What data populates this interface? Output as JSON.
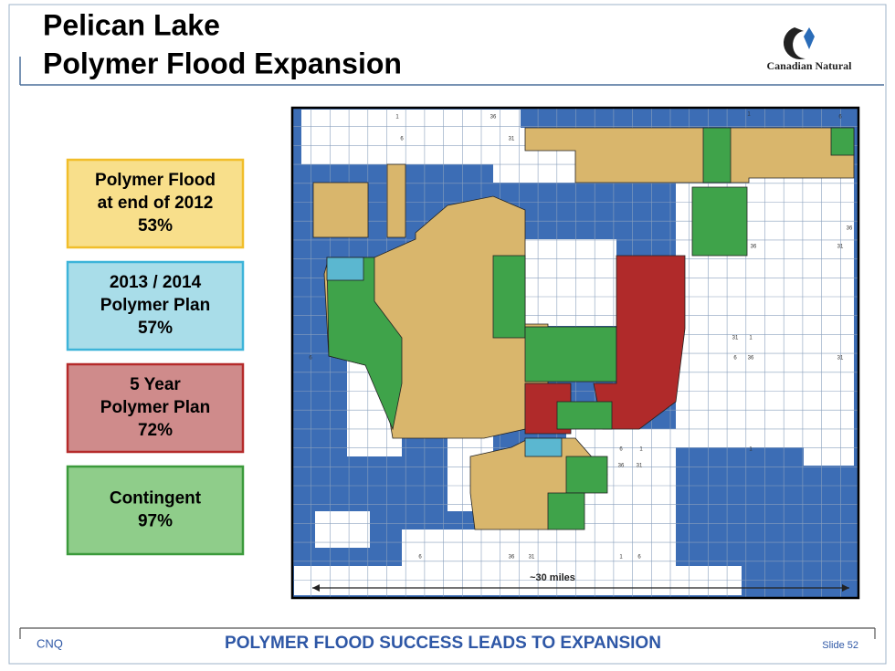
{
  "header": {
    "title_lines": [
      "Pelican Lake",
      "Polymer Flood Expansion"
    ],
    "logo": "Canadian Natural"
  },
  "legend": [
    {
      "lines": [
        "Polymer Flood",
        "at end of 2012"
      ],
      "percent": "53%"
    },
    {
      "lines": [
        "2013 / 2014",
        "Polymer Plan"
      ],
      "percent": "57%"
    },
    {
      "lines": [
        "5 Year",
        "Polymer Plan"
      ],
      "percent": "72%"
    },
    {
      "lines": [
        "Contingent"
      ],
      "percent": "97%"
    }
  ],
  "map": {
    "scale_label": "~30 miles",
    "grid_labels": [
      "1",
      "6",
      "36",
      "31",
      "1",
      "6",
      "36",
      "31",
      "36",
      "31",
      "1",
      "6",
      "36",
      "31",
      "6",
      "1",
      "6",
      "36",
      "31",
      "1",
      "6",
      "36",
      "31",
      "1",
      "6"
    ]
  },
  "footer": {
    "left": "CNQ",
    "center": "POLYMER FLOOD SUCCESS LEADS TO EXPANSION",
    "right": "Slide 52"
  }
}
